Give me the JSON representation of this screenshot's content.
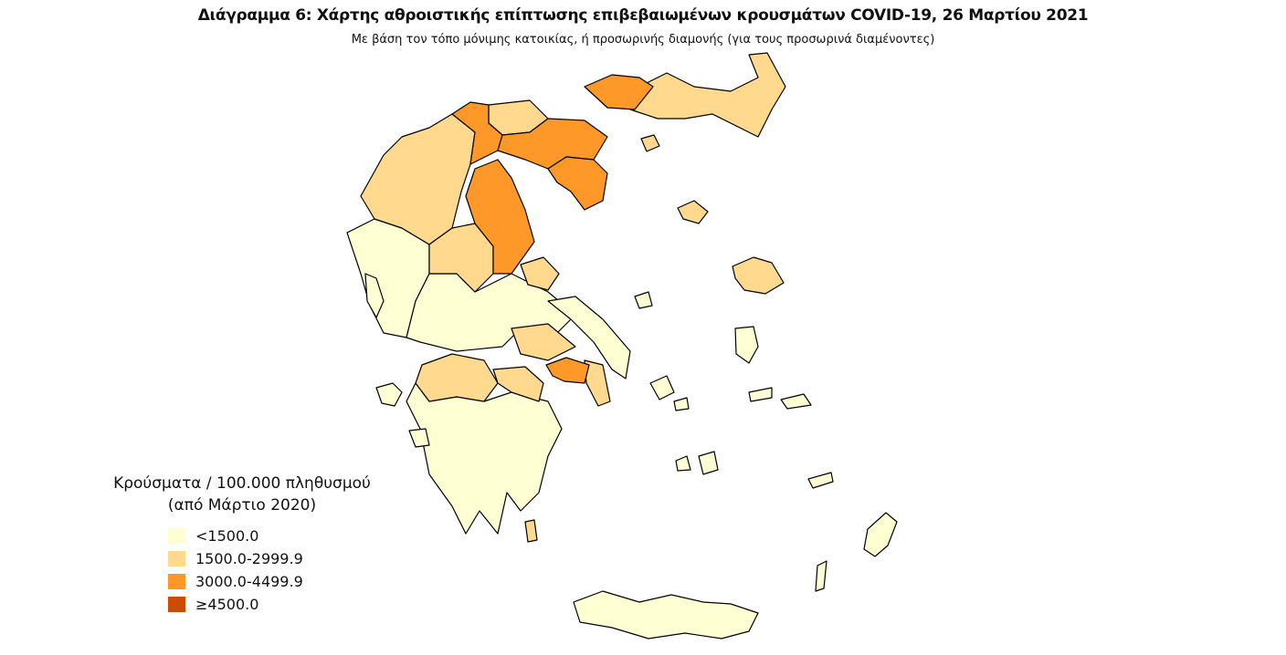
{
  "title": "Διάγραμμα 6: Χάρτης αθροιστικής επίπτωσης επιβεβαιωμένων κρουσμάτων COVID-19, 26 Μαρτίου 2021",
  "subtitle": "Με βάση τον τόπο μόνιμης κατοικίας, ή προσωρινής διαμονής (για τους προσωρινά διαμένοντες)",
  "legend": {
    "title_line1": "Κρούσματα / 100.000 πληθυσμού",
    "title_line2": "(από Μάρτιο 2020)",
    "classes": [
      {
        "label": "<1500.0",
        "color": "#ffffd4"
      },
      {
        "label": "1500.0-2999.9",
        "color": "#fed98e"
      },
      {
        "label": "3000.0-4499.9",
        "color": "#fe9929"
      },
      {
        "label": "≥4500.0",
        "color": "#cc4c02"
      }
    ]
  }
}
